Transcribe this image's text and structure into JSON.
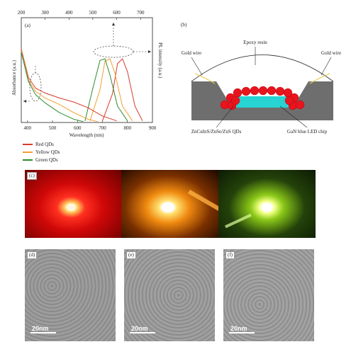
{
  "panel_a": {
    "tag": "(a)",
    "top_axis_ticks": [
      "200",
      "300",
      "400",
      "500",
      "600",
      "700"
    ],
    "bottom_axis_ticks": [
      "400",
      "500",
      "600",
      "700",
      "800",
      "900"
    ],
    "xlabel": "Wavelength (nm)",
    "ylabel_left": "Absorbance (a.u.)",
    "ylabel_right": "PL intensity (a.u.)",
    "legend": [
      {
        "name": "Red QDs",
        "color": "#d9392b"
      },
      {
        "name": "Yellow QDs",
        "color": "#f0a030"
      },
      {
        "name": "Green QDs",
        "color": "#2e8b2e"
      }
    ]
  },
  "panel_b": {
    "tag": "(b)",
    "labels": {
      "epoxy": "Epoxy resin",
      "gold_wire_left": "Gold wire",
      "gold_wire_right": "Gold wire",
      "qds": "ZnCuInS/ZnSe/ZnS QDs",
      "chip": "GaN blue LED chip"
    },
    "colors": {
      "qd": "#e8141e",
      "chip": "#27d3d3",
      "housing": "#6e6e6e"
    }
  },
  "panel_c": {
    "tag": "(c)"
  },
  "panel_tem": [
    {
      "tag": "(d)",
      "scale": "20nm"
    },
    {
      "tag": "(e)",
      "scale": "20nm"
    },
    {
      "tag": "(f)",
      "scale": "20nm"
    }
  ],
  "chart_data": {
    "type": "line",
    "x_axis_absorbance": {
      "range": [
        200,
        750
      ]
    },
    "x_axis_pl": {
      "range": [
        375,
        900
      ]
    },
    "series": [
      {
        "name": "Red QDs",
        "kind": "PL",
        "x": [
          700,
          740,
          760,
          780,
          800,
          830,
          860
        ],
        "y": [
          0.02,
          0.35,
          0.72,
          0.78,
          0.62,
          0.2,
          0.02
        ]
      },
      {
        "name": "Yellow QDs",
        "kind": "PL",
        "x": [
          650,
          690,
          710,
          730,
          750,
          780,
          820
        ],
        "y": [
          0.02,
          0.4,
          0.75,
          0.78,
          0.6,
          0.2,
          0.02
        ]
      },
      {
        "name": "Green QDs",
        "kind": "PL",
        "x": [
          630,
          660,
          690,
          710,
          730,
          760,
          800
        ],
        "y": [
          0.02,
          0.4,
          0.76,
          0.78,
          0.58,
          0.2,
          0.02
        ]
      },
      {
        "name": "Red QDs",
        "kind": "Absorbance",
        "x": [
          200,
          230,
          260,
          300,
          360,
          420,
          480,
          540,
          600
        ],
        "y": [
          0.9,
          0.55,
          0.42,
          0.36,
          0.3,
          0.25,
          0.18,
          0.08,
          0.02
        ]
      },
      {
        "name": "Yellow QDs",
        "kind": "Absorbance",
        "x": [
          200,
          230,
          260,
          300,
          360,
          420,
          480,
          520
        ],
        "y": [
          0.88,
          0.52,
          0.38,
          0.3,
          0.22,
          0.12,
          0.04,
          0.01
        ]
      },
      {
        "name": "Green QDs",
        "kind": "Absorbance",
        "x": [
          200,
          230,
          260,
          300,
          360,
          420,
          460
        ],
        "y": [
          0.86,
          0.5,
          0.34,
          0.24,
          0.12,
          0.04,
          0.01
        ]
      }
    ]
  }
}
